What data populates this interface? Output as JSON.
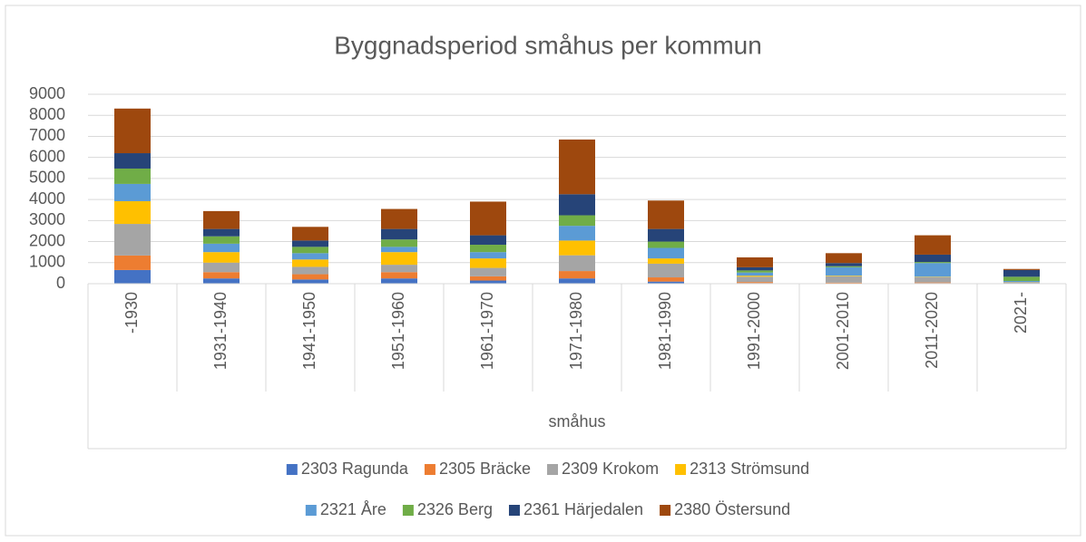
{
  "chart_data": {
    "type": "stacked-bar",
    "title": "Byggnadsperiod småhus per kommun",
    "x_axis_label": "småhus",
    "categories": [
      "-1930",
      "1931-1940",
      "1941-1950",
      "1951-1960",
      "1961-1970",
      "1971-1980",
      "1981-1990",
      "1991-2000",
      "2001-2010",
      "2011-2020",
      "2021-"
    ],
    "series": [
      {
        "name": "2303 Ragunda",
        "color": "#4472c4",
        "values": [
          650,
          250,
          200,
          250,
          150,
          250,
          100,
          30,
          20,
          30,
          10
        ]
      },
      {
        "name": "2305 Bräcke",
        "color": "#ed7d31",
        "values": [
          690,
          300,
          250,
          300,
          200,
          350,
          200,
          50,
          30,
          30,
          10
        ]
      },
      {
        "name": "2309 Krokom",
        "color": "#a5a5a5",
        "values": [
          1500,
          450,
          350,
          350,
          400,
          750,
          650,
          250,
          300,
          250,
          50
        ]
      },
      {
        "name": "2313 Strömsund",
        "color": "#ffc000",
        "values": [
          1080,
          500,
          350,
          600,
          450,
          700,
          250,
          50,
          30,
          20,
          10
        ]
      },
      {
        "name": "2321 Åre",
        "color": "#5b9bd5",
        "values": [
          820,
          400,
          300,
          250,
          300,
          700,
          500,
          150,
          400,
          650,
          50
        ]
      },
      {
        "name": "2326 Berg",
        "color": "#70ad47",
        "values": [
          730,
          350,
          300,
          350,
          350,
          500,
          300,
          100,
          50,
          50,
          200
        ]
      },
      {
        "name": "2361 Härjedalen",
        "color": "#264478",
        "values": [
          730,
          350,
          300,
          500,
          450,
          1000,
          600,
          150,
          150,
          350,
          320
        ]
      },
      {
        "name": "2380 Östersund",
        "color": "#9e480e",
        "values": [
          2120,
          850,
          650,
          950,
          1600,
          2600,
          1350,
          470,
          470,
          920,
          50
        ]
      }
    ],
    "ylim": [
      0,
      9000
    ],
    "yticks": [
      0,
      1000,
      2000,
      3000,
      4000,
      5000,
      6000,
      7000,
      8000,
      9000
    ],
    "grid": true,
    "legend": "bottom"
  }
}
